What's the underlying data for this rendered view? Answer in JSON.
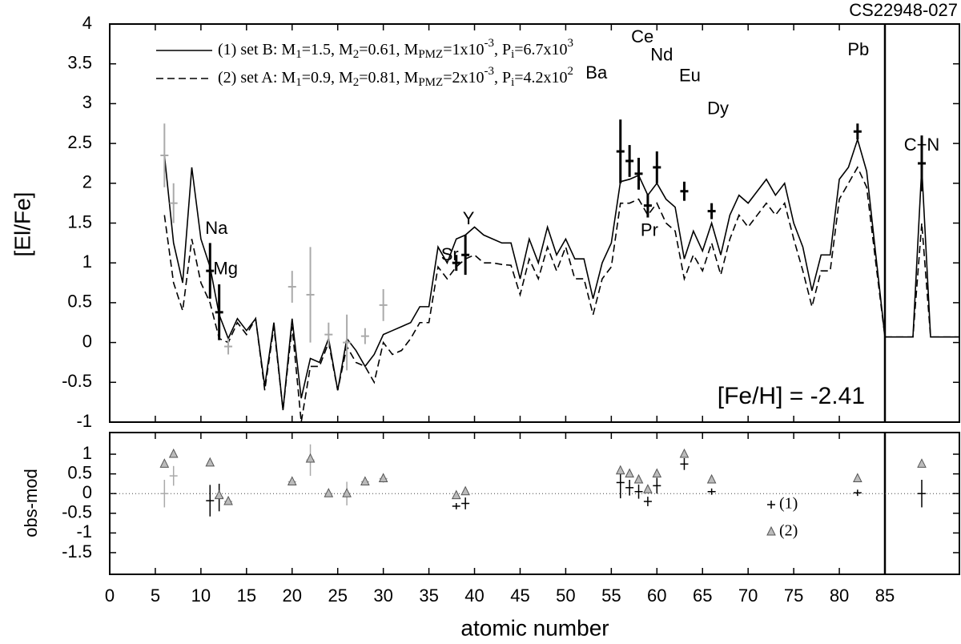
{
  "chart_data": {
    "type": "line",
    "title": "CS22948-027",
    "ylabel": "[El/Fe]",
    "xlabel": "atomic number",
    "annotation": "[Fe/H] = -2.41",
    "xlim": [
      0,
      85
    ],
    "xticks": [
      0,
      5,
      10,
      15,
      20,
      25,
      30,
      35,
      40,
      45,
      50,
      55,
      60,
      65,
      70,
      75,
      80,
      85
    ],
    "ylim": [
      -1,
      4
    ],
    "yticks": [
      -1,
      -0.5,
      0,
      0.5,
      1,
      1.5,
      2,
      2.5,
      3,
      3.5,
      4
    ],
    "models": {
      "x": [
        6,
        7,
        8,
        9,
        10,
        11,
        12,
        13,
        14,
        15,
        16,
        17,
        18,
        19,
        20,
        21,
        22,
        23,
        24,
        25,
        26,
        27,
        28,
        29,
        30,
        31,
        32,
        33,
        34,
        35,
        36,
        37,
        38,
        39,
        40,
        41,
        42,
        43,
        44,
        45,
        46,
        47,
        48,
        49,
        50,
        51,
        52,
        53,
        54,
        55,
        56,
        57,
        58,
        59,
        60,
        61,
        62,
        63,
        64,
        65,
        66,
        67,
        68,
        69,
        70,
        71,
        72,
        73,
        74,
        75,
        76,
        77,
        78,
        79,
        80,
        81,
        82,
        83,
        84,
        85
      ],
      "series": [
        {
          "name_parts": [
            "(1) set B: M",
            "1",
            "=1.5, M",
            "2",
            "=0.61, M",
            "PMZ",
            "=1x10",
            "-3",
            ", P",
            "i",
            "=6.7x10",
            "3"
          ],
          "color": "#000000",
          "dashed": false,
          "values": [
            2.35,
            1.25,
            0.75,
            2.2,
            1.3,
            0.95,
            0.35,
            0.05,
            0.3,
            0.15,
            0.3,
            -0.55,
            0.25,
            -0.85,
            0.3,
            -0.7,
            -0.2,
            -0.25,
            0.05,
            -0.6,
            0.05,
            -0.1,
            -0.3,
            -0.15,
            0.1,
            0.15,
            0.2,
            0.25,
            0.45,
            0.45,
            1.2,
            1.0,
            1.3,
            1.35,
            1.45,
            1.35,
            1.3,
            1.25,
            1.25,
            0.8,
            1.3,
            1.0,
            1.45,
            1.1,
            1.3,
            1.05,
            1.05,
            0.55,
            1.0,
            1.25,
            2.02,
            2.05,
            2.1,
            1.85,
            2.0,
            1.8,
            1.7,
            1.05,
            1.4,
            1.15,
            1.5,
            1.1,
            1.6,
            1.85,
            1.75,
            1.9,
            2.05,
            1.85,
            2.0,
            1.5,
            1.2,
            0.65,
            1.1,
            1.1,
            2.05,
            2.2,
            2.55,
            2.15,
            1.1,
            0.07
          ]
        },
        {
          "name_parts": [
            "(2) set A: M",
            "1",
            "=0.9, M",
            "2",
            "=0.81, M",
            "PMZ",
            "=2x10",
            "-3",
            ", P",
            "i",
            "=4.2x10",
            "2"
          ],
          "color": "#000000",
          "dashed": true,
          "values": [
            1.6,
            0.75,
            0.4,
            1.3,
            0.75,
            0.5,
            0.05,
            0.0,
            0.25,
            0.1,
            0.3,
            -0.6,
            0.2,
            -0.85,
            0.2,
            -1.0,
            -0.3,
            -0.3,
            0.0,
            -0.6,
            -0.05,
            -0.25,
            -0.3,
            -0.5,
            0.0,
            -0.15,
            -0.1,
            0.05,
            0.25,
            0.25,
            0.95,
            0.8,
            0.95,
            1.05,
            1.1,
            1.0,
            1.0,
            0.98,
            0.97,
            0.6,
            1.05,
            0.8,
            1.2,
            0.9,
            1.2,
            0.8,
            0.8,
            0.35,
            0.8,
            0.95,
            1.75,
            1.75,
            1.8,
            1.6,
            1.75,
            1.5,
            1.4,
            0.8,
            1.1,
            0.9,
            1.25,
            0.85,
            1.3,
            1.6,
            1.45,
            1.6,
            1.75,
            1.6,
            1.75,
            1.3,
            0.9,
            0.45,
            0.9,
            0.9,
            1.8,
            2.0,
            2.2,
            1.95,
            1.0,
            0.07
          ]
        }
      ]
    },
    "obs_light": {
      "color": "#aaaaaa",
      "x": [
        6,
        7,
        13,
        20,
        22,
        24,
        26,
        28,
        30
      ],
      "values": [
        2.35,
        1.75,
        -0.05,
        0.7,
        0.6,
        0.1,
        0.0,
        0.08,
        0.47
      ],
      "errors": [
        0.4,
        0.25,
        0.1,
        0.2,
        0.6,
        0.15,
        0.35,
        0.1,
        0.2
      ]
    },
    "obs_dark": {
      "color": "#000000",
      "x": [
        11,
        12,
        38,
        39,
        56,
        57,
        58,
        59,
        60,
        63,
        66,
        82
      ],
      "values": [
        0.9,
        0.38,
        1.0,
        1.1,
        2.4,
        2.28,
        2.12,
        1.72,
        2.2,
        1.9,
        1.65,
        2.65
      ],
      "errors": [
        0.35,
        0.35,
        0.1,
        0.25,
        0.4,
        0.2,
        0.2,
        0.15,
        0.2,
        0.12,
        0.1,
        0.1
      ],
      "labels": [
        "Na",
        "Mg",
        "Sr",
        "Y",
        "Ba",
        "Ce",
        null,
        "Pr",
        "Nd",
        "Eu",
        "Dy",
        "Pb"
      ]
    },
    "residuals": {
      "ylabel": "obs-mod",
      "ylim": [
        -2.05,
        1.55
      ],
      "yticks": [
        -1.5,
        -1,
        -0.5,
        0,
        0.5,
        1
      ],
      "cross_light": {
        "color": "#aaaaaa",
        "x": [
          6,
          7,
          13,
          20,
          22,
          24,
          26,
          28,
          30
        ],
        "values": [
          0,
          0.45,
          -0.2,
          0.3,
          0.85,
          0,
          0,
          0.3,
          0.38
        ],
        "errors": [
          0.35,
          0.25,
          0.05,
          0.08,
          0.4,
          0.05,
          0.3,
          0.05,
          0.1
        ]
      },
      "cross_dark": {
        "color": "#000000",
        "x": [
          11,
          12,
          38,
          39,
          56,
          57,
          58,
          59,
          60,
          63,
          66,
          82
        ],
        "values": [
          -0.18,
          -0.1,
          -0.32,
          -0.25,
          0.28,
          0.15,
          0.05,
          -0.2,
          0.2,
          0.75,
          0.05,
          0.02
        ],
        "errors": [
          0.4,
          0.35,
          0.08,
          0.15,
          0.4,
          0.2,
          0.18,
          0.12,
          0.2,
          0.15,
          0.08,
          0.08
        ]
      },
      "triangles": {
        "color": "#999999",
        "x": [
          6,
          7,
          11,
          12,
          13,
          20,
          22,
          24,
          26,
          28,
          30,
          38,
          39,
          56,
          57,
          58,
          59,
          60,
          63,
          66,
          82
        ],
        "values": [
          0.75,
          1.0,
          0.78,
          -0.05,
          -0.2,
          0.3,
          0.88,
          0,
          0,
          0.3,
          0.38,
          -0.05,
          0.05,
          0.58,
          0.5,
          0.35,
          0.1,
          0.5,
          1.0,
          0.35,
          0.38
        ]
      },
      "legend": [
        "(1)",
        "(2)"
      ]
    },
    "cn": {
      "label": "C+N",
      "model_values": [
        [
          0.07,
          0.07,
          2.2,
          0.07,
          0.07
        ],
        [
          0.07,
          0.07,
          1.5,
          0.07,
          0.07
        ]
      ],
      "obs": 2.25,
      "obs_err": 0.35,
      "res_cross": 0,
      "res_cross_err": 0.35,
      "res_triangle": 0.75
    }
  }
}
